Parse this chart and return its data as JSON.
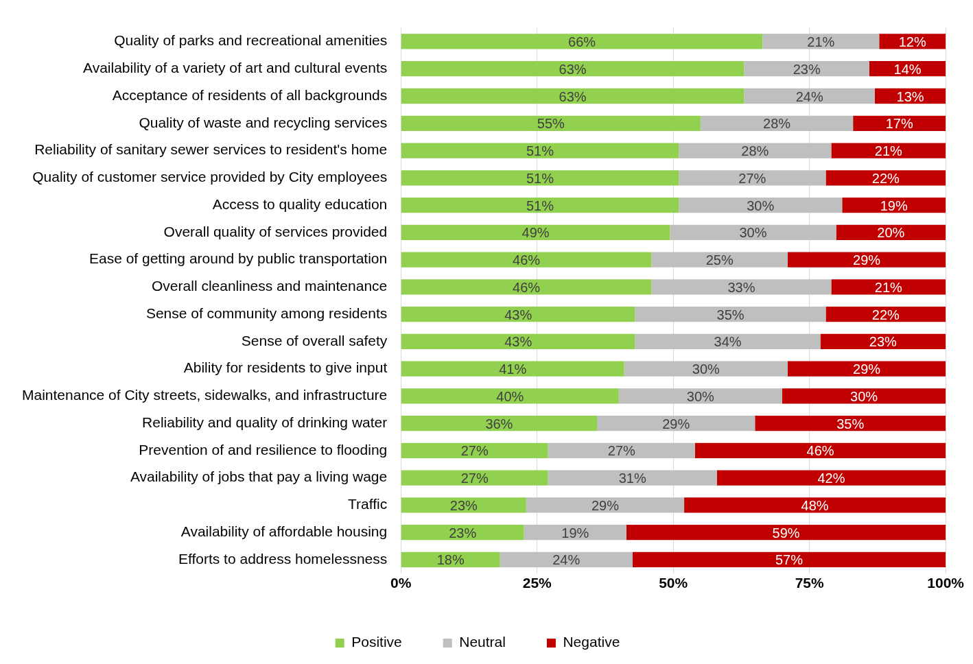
{
  "chart_data": {
    "type": "bar",
    "orientation": "horizontal",
    "stacked": true,
    "categories": [
      "Quality of parks and recreational amenities",
      "Availability of a variety of art and cultural events",
      "Acceptance of residents of all backgrounds",
      "Quality of waste and recycling services",
      "Reliability of sanitary sewer services to resident's home",
      "Quality of customer service provided by City employees",
      "Access to quality education",
      "Overall quality of services provided",
      "Ease of getting around by public transportation",
      "Overall cleanliness and maintenance",
      "Sense of community among residents",
      "Sense of overall safety",
      "Ability for residents to give input",
      "Maintenance of City streets, sidewalks, and infrastructure",
      "Reliability and quality of drinking water",
      "Prevention of and resilience to flooding",
      "Availability of jobs that pay a living wage",
      "Traffic",
      "Availability of affordable housing",
      "Efforts to address homelessness"
    ],
    "series": [
      {
        "name": "Positive",
        "color": "#92d050",
        "values": [
          66.4,
          63,
          63,
          55,
          51,
          51,
          51,
          49.4,
          46,
          46,
          43,
          43,
          41,
          40,
          36,
          27,
          27,
          23,
          22.6,
          18.2
        ],
        "value_labels": [
          "66%",
          "63%",
          "63%",
          "55%",
          "51%",
          "51%",
          "51%",
          "49%",
          "46%",
          "46%",
          "43%",
          "43%",
          "41%",
          "40%",
          "36%",
          "27%",
          "27%",
          "23%",
          "23%",
          "18%"
        ]
      },
      {
        "name": "Neutral",
        "color": "#bfbfbf",
        "values": [
          21.4,
          23,
          24,
          28,
          28,
          27,
          30,
          30.5,
          25,
          33,
          35,
          34,
          30,
          30,
          29,
          27,
          31,
          29,
          18.8,
          24.3
        ],
        "value_labels": [
          "21%",
          "23%",
          "24%",
          "28%",
          "28%",
          "27%",
          "30%",
          "30%",
          "25%",
          "33%",
          "35%",
          "34%",
          "30%",
          "30%",
          "29%",
          "27%",
          "31%",
          "29%",
          "19%",
          "24%"
        ]
      },
      {
        "name": "Negative",
        "color": "#c00000",
        "values": [
          12.2,
          14,
          13,
          17,
          21,
          22,
          19,
          20.1,
          29,
          21,
          22,
          23,
          29,
          30,
          35,
          46,
          42,
          48,
          58.6,
          57.5
        ],
        "value_labels": [
          "12%",
          "14%",
          "13%",
          "17%",
          "21%",
          "22%",
          "19%",
          "20%",
          "29%",
          "21%",
          "22%",
          "23%",
          "29%",
          "30%",
          "35%",
          "46%",
          "42%",
          "48%",
          "59%",
          "57%"
        ]
      }
    ],
    "xlim": [
      0,
      100
    ],
    "xticks": [
      {
        "value": 0,
        "label": "0%"
      },
      {
        "value": 25,
        "label": "25%"
      },
      {
        "value": 50,
        "label": "50%"
      },
      {
        "value": 75,
        "label": "75%"
      },
      {
        "value": 100,
        "label": "100%"
      }
    ],
    "grid": "x",
    "legend": "bottom"
  }
}
